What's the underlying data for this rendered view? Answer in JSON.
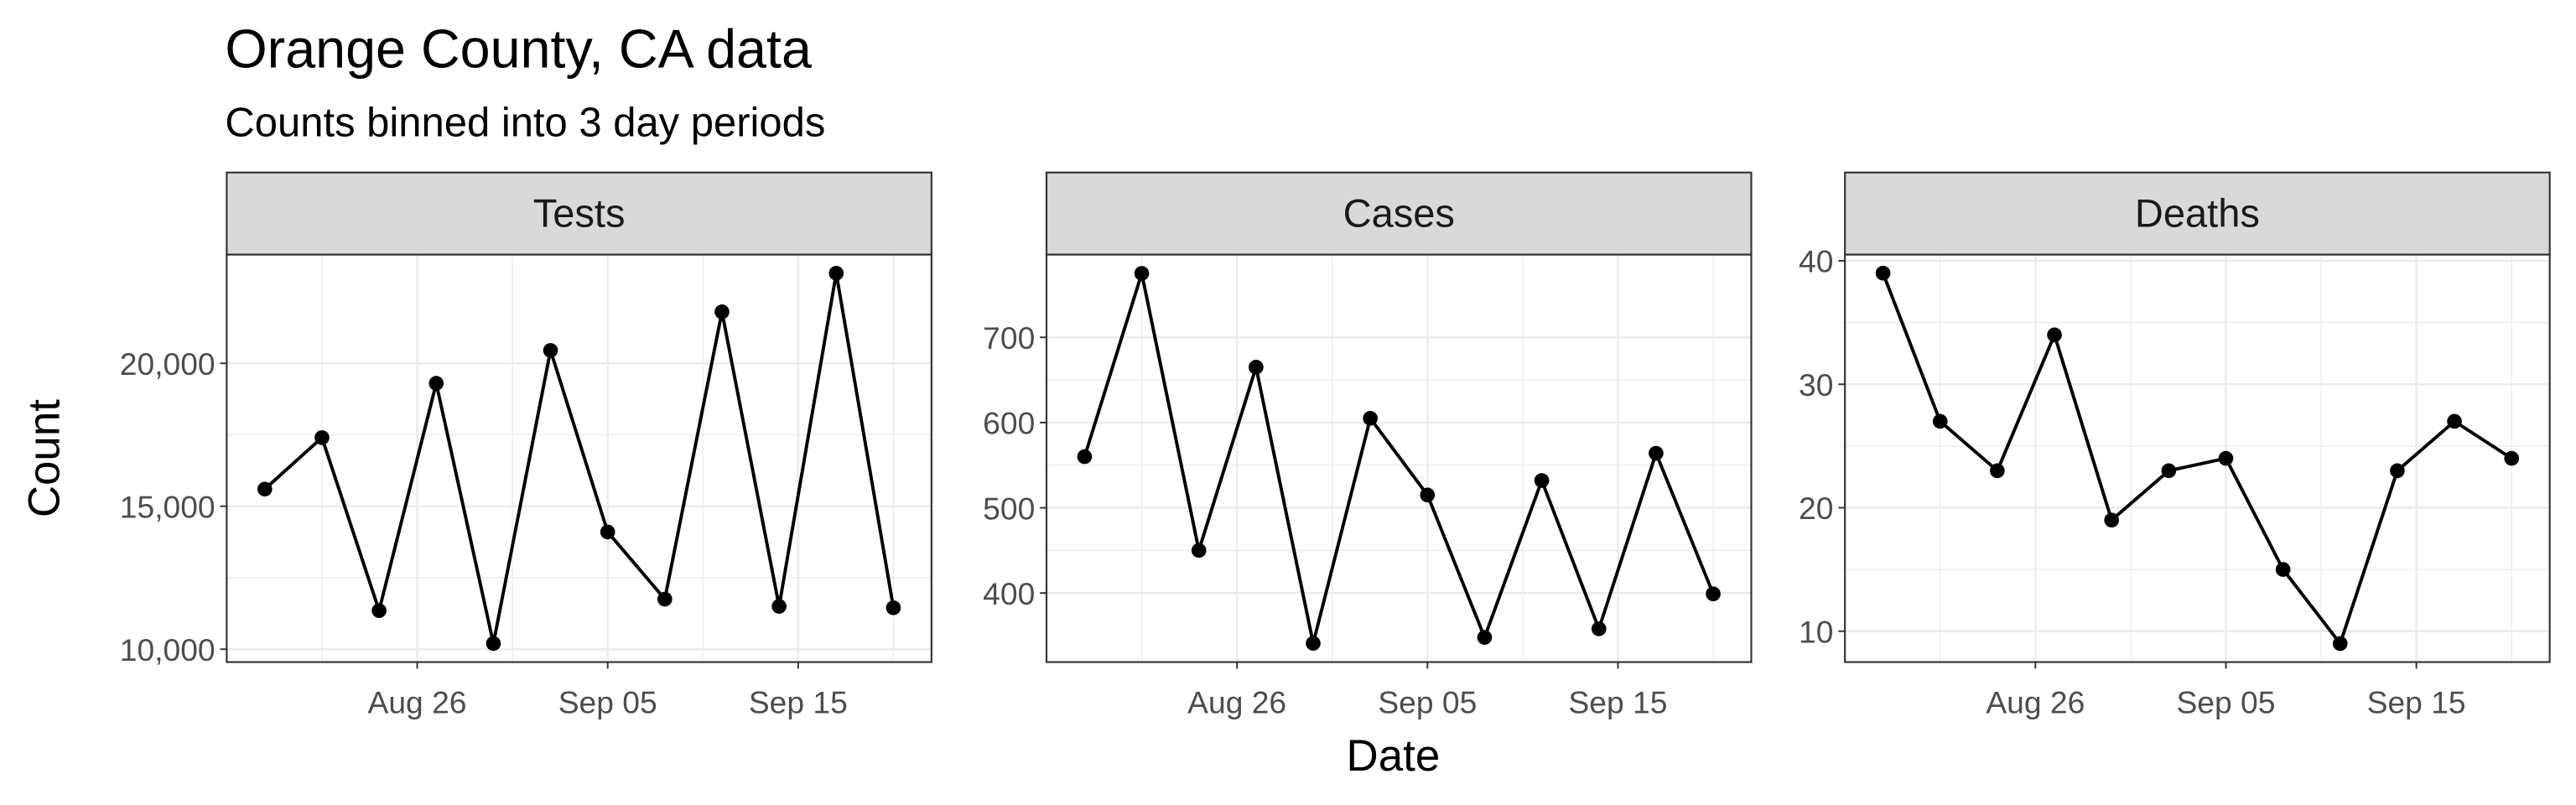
{
  "title": "Orange County, CA data",
  "subtitle": "Counts binned into 3 day periods",
  "xlabel": "Date",
  "ylabel": "Count",
  "chart_data": [
    {
      "type": "line",
      "title": "Tests",
      "color": "#000000",
      "grid": true,
      "x": [
        "08-18",
        "08-21",
        "08-24",
        "08-27",
        "08-30",
        "09-02",
        "09-05",
        "09-08",
        "09-11",
        "09-14",
        "09-17",
        "09-20"
      ],
      "values": [
        15600,
        17400,
        11350,
        19300,
        10200,
        20450,
        14100,
        11750,
        21800,
        11500,
        23150,
        11450
      ],
      "xlim": [
        "08-16",
        "09-22"
      ],
      "xticks": [
        {
          "value": "08-26",
          "label": "Aug 26"
        },
        {
          "value": "09-05",
          "label": "Sep 05"
        },
        {
          "value": "09-15",
          "label": "Sep 15"
        }
      ],
      "ylim": [
        9550,
        23800
      ],
      "yticks": [
        {
          "value": 10000,
          "label": "10,000"
        },
        {
          "value": 15000,
          "label": "15,000"
        },
        {
          "value": 20000,
          "label": "20,000"
        }
      ]
    },
    {
      "type": "line",
      "title": "Cases",
      "color": "#000000",
      "grid": true,
      "x": [
        "08-18",
        "08-21",
        "08-24",
        "08-27",
        "08-30",
        "09-02",
        "09-05",
        "09-08",
        "09-11",
        "09-14",
        "09-17",
        "09-20"
      ],
      "values": [
        560,
        775,
        450,
        665,
        341,
        605,
        515,
        348,
        532,
        358,
        564,
        399
      ],
      "xlim": [
        "08-16",
        "09-22"
      ],
      "xticks": [
        {
          "value": "08-26",
          "label": "Aug 26"
        },
        {
          "value": "09-05",
          "label": "Sep 05"
        },
        {
          "value": "09-15",
          "label": "Sep 15"
        }
      ],
      "ylim": [
        319,
        797
      ],
      "yticks": [
        400,
        500,
        600,
        700
      ]
    },
    {
      "type": "line",
      "title": "Deaths",
      "color": "#000000",
      "grid": true,
      "x": [
        "08-18",
        "08-21",
        "08-24",
        "08-27",
        "08-30",
        "09-02",
        "09-05",
        "09-08",
        "09-11",
        "09-14",
        "09-17",
        "09-20"
      ],
      "values": [
        39,
        27,
        23,
        34,
        19,
        23,
        24,
        15,
        9,
        23,
        27,
        24
      ],
      "xlim": [
        "08-16",
        "09-22"
      ],
      "xticks": [
        {
          "value": "08-26",
          "label": "Aug 26"
        },
        {
          "value": "09-05",
          "label": "Sep 05"
        },
        {
          "value": "09-15",
          "label": "Sep 15"
        }
      ],
      "ylim": [
        7.5,
        40.5
      ],
      "yticks": [
        10,
        20,
        30,
        40
      ]
    }
  ]
}
